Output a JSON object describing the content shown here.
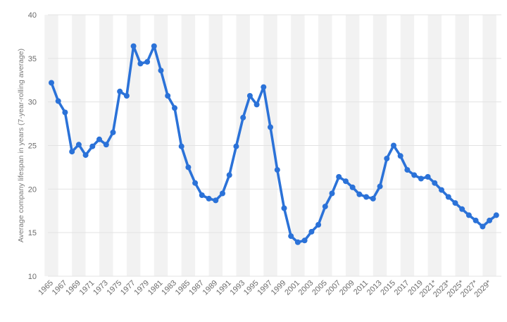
{
  "chart_data": {
    "type": "line",
    "title": "",
    "xlabel": "",
    "ylabel": "Average company lifespan in years (7-year-rolling average)",
    "ylim": [
      10,
      40
    ],
    "yticks": [
      10,
      15,
      20,
      25,
      30,
      35,
      40
    ],
    "grid": "horizontal",
    "line_color": "#2b72d8",
    "band_color": "#f2f2f2",
    "x": [
      1965,
      1966,
      1967,
      1968,
      1969,
      1970,
      1971,
      1972,
      1973,
      1974,
      1975,
      1976,
      1977,
      1978,
      1979,
      1980,
      1981,
      1982,
      1983,
      1984,
      1985,
      1986,
      1987,
      1988,
      1989,
      1990,
      1991,
      1992,
      1993,
      1994,
      1995,
      1996,
      1997,
      1998,
      1999,
      2000,
      2001,
      2002,
      2003,
      2004,
      2005,
      2006,
      2007,
      2008,
      2009,
      2010,
      2011,
      2012,
      2013,
      2014,
      2015,
      2016,
      2017,
      2018,
      2019,
      2020,
      2021,
      2022,
      2023,
      2024,
      2025,
      2026,
      2027,
      2028,
      2029,
      2030
    ],
    "x_tick_labels": [
      "1965",
      "1967",
      "1969",
      "1971",
      "1973",
      "1975",
      "1977",
      "1979",
      "1981",
      "1983",
      "1985",
      "1987",
      "1989",
      "1991",
      "1993",
      "1995",
      "1997",
      "1999",
      "2001",
      "2003",
      "2005",
      "2007",
      "2009",
      "2011",
      "2013",
      "2015",
      "2017",
      "2019",
      "2021*",
      "2023*",
      "2025*",
      "2027*",
      "2029*"
    ],
    "series": [
      {
        "values": [
          32.2,
          30.1,
          28.8,
          24.3,
          25.1,
          23.9,
          24.9,
          25.7,
          25.1,
          26.5,
          31.2,
          30.7,
          36.4,
          34.4,
          34.6,
          36.4,
          33.6,
          30.7,
          29.3,
          24.9,
          22.5,
          20.7,
          19.3,
          18.9,
          18.7,
          19.5,
          21.6,
          24.9,
          28.2,
          30.7,
          29.7,
          31.7,
          27.1,
          22.2,
          17.8,
          14.6,
          13.9,
          14.1,
          15.1,
          15.9,
          18.0,
          19.5,
          21.4,
          20.9,
          20.2,
          19.4,
          19.1,
          18.9,
          20.3,
          23.5,
          25.0,
          23.8,
          22.2,
          21.6,
          21.2,
          21.4,
          20.7,
          19.9,
          19.1,
          18.4,
          17.7,
          17.0,
          16.4,
          15.7,
          16.4,
          17.0
        ]
      }
    ]
  }
}
